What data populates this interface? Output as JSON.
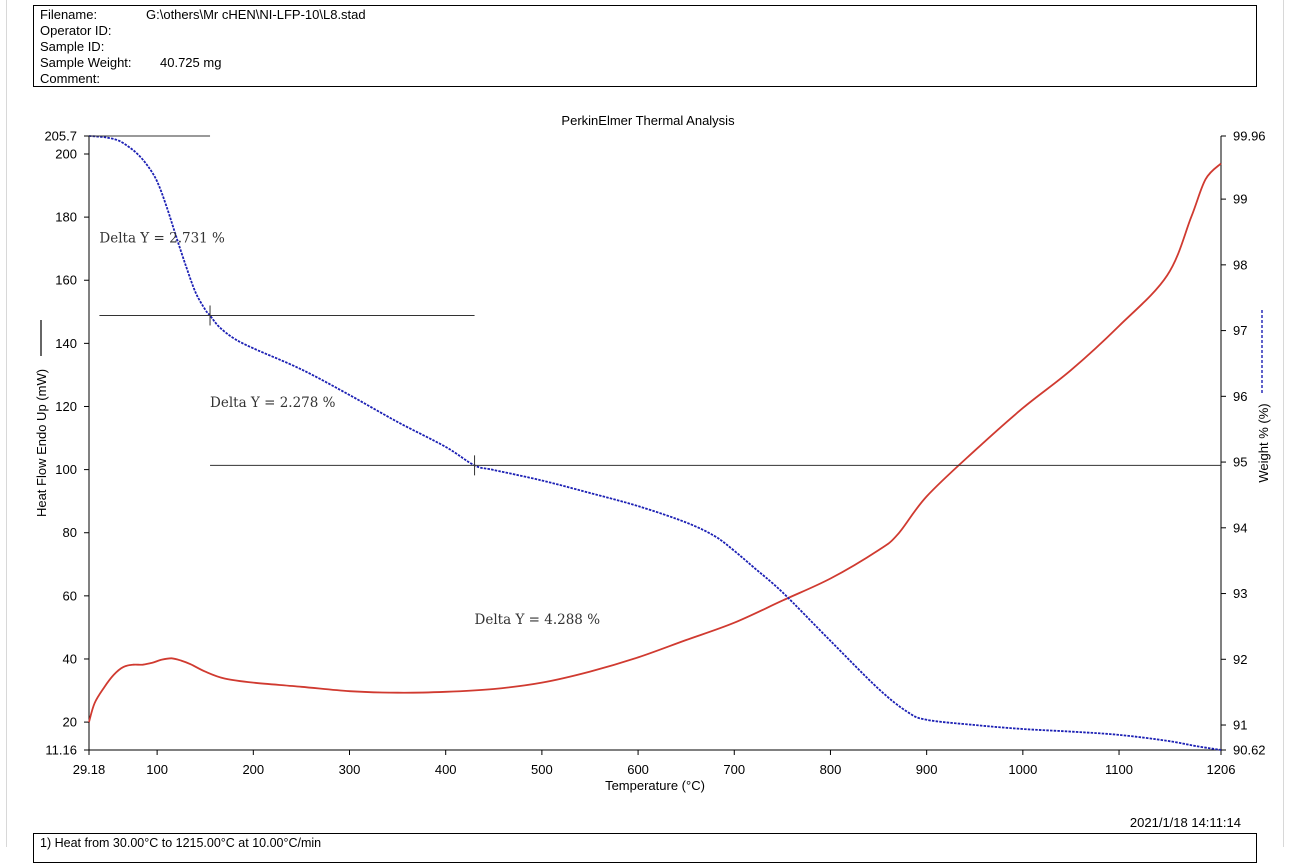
{
  "header": {
    "filename_label": "Filename:",
    "filename": "G:\\others\\Mr cHEN\\NI-LFP-10\\L8.stad",
    "operator_label": "Operator ID:",
    "sample_id_label": "Sample ID:",
    "sample_weight_label": "Sample Weight:",
    "sample_weight": "40.725 mg",
    "comment_label": "Comment:"
  },
  "timestamp": "2021/1/18 14:11:14",
  "footer": {
    "method_step": "1)  Heat from 30.00°C to 1215.00°C at 10.00°C/min"
  },
  "chart_data": {
    "type": "line",
    "title": "PerkinElmer Thermal Analysis",
    "xlabel": "Temperature (°C)",
    "ylabel_left": "Heat Flow Endo Up (mW)",
    "ylabel_right": "Weight % (%)",
    "xlim": [
      29.18,
      1206
    ],
    "ylim_left": [
      11.16,
      205.7
    ],
    "ylim_right": [
      90.62,
      99.96
    ],
    "x_ticks": [
      "29.18",
      "100",
      "200",
      "300",
      "400",
      "500",
      "600",
      "700",
      "800",
      "900",
      "1000",
      "1100",
      "1206"
    ],
    "y_left_ticks": [
      "205.7",
      "200",
      "180",
      "160",
      "140",
      "120",
      "100",
      "80",
      "60",
      "40",
      "20",
      "11.16"
    ],
    "y_right_ticks": [
      "99.96",
      "99",
      "98",
      "97",
      "96",
      "95",
      "94",
      "93",
      "92",
      "91",
      "90.62"
    ],
    "series": [
      {
        "axis": "left",
        "color": "#d03a30",
        "style": "solid",
        "x": [
          29.18,
          35,
          45,
          55,
          65,
          75,
          85,
          95,
          105,
          115,
          125,
          135,
          150,
          170,
          200,
          250,
          300,
          350,
          400,
          450,
          500,
          550,
          600,
          650,
          700,
          750,
          800,
          850,
          870,
          900,
          950,
          1000,
          1050,
          1100,
          1150,
          1175,
          1190,
          1206
        ],
        "y": [
          20,
          26,
          31,
          35,
          37.5,
          38.2,
          38.2,
          38.8,
          39.8,
          40.2,
          39.5,
          38.3,
          36,
          33.8,
          32.5,
          31.2,
          29.8,
          29.3,
          29.6,
          30.5,
          32.5,
          36,
          40.5,
          46,
          51.5,
          58.5,
          65.5,
          74.5,
          79.5,
          91.5,
          106,
          119.5,
          131.5,
          145.5,
          161.5,
          180,
          192,
          197
        ]
      },
      {
        "axis": "right",
        "color": "#1c20b4",
        "style": "dashed",
        "x": [
          29.18,
          40,
          50,
          60,
          70,
          80,
          90,
          100,
          110,
          120,
          130,
          140,
          150,
          155,
          165,
          180,
          200,
          250,
          300,
          350,
          400,
          430,
          450,
          500,
          550,
          600,
          650,
          680,
          700,
          720,
          750,
          800,
          850,
          880,
          900,
          950,
          1000,
          1050,
          1100,
          1150,
          1180,
          1206
        ],
        "y": [
          99.96,
          99.95,
          99.93,
          99.89,
          99.8,
          99.68,
          99.51,
          99.27,
          98.88,
          98.42,
          97.98,
          97.58,
          97.32,
          97.23,
          97.05,
          96.88,
          96.73,
          96.41,
          96.02,
          95.61,
          95.23,
          94.95,
          94.88,
          94.72,
          94.53,
          94.33,
          94.08,
          93.87,
          93.65,
          93.4,
          93.02,
          92.28,
          91.55,
          91.2,
          91.08,
          91.0,
          90.94,
          90.9,
          90.85,
          90.76,
          90.68,
          90.62
        ]
      }
    ],
    "annotations": [
      {
        "text": "Delta Y = 2.731 %",
        "x": 40,
        "y_right": 98.4
      },
      {
        "text": "Delta Y = 2.278 %",
        "x": 155,
        "y_right": 95.9
      },
      {
        "text": "Delta Y = 4.288 %",
        "x": 430,
        "y_right": 92.6
      }
    ],
    "step_lines": [
      {
        "x_from": 29.18,
        "x_to": 155,
        "y_right": 99.96
      },
      {
        "x_from": 40,
        "x_to": 430,
        "y_right": 97.23
      },
      {
        "x_from": 155,
        "x_to": 1206,
        "y_right": 94.95
      }
    ],
    "markers": [
      {
        "x": 155,
        "y_right": 97.23
      },
      {
        "x": 430,
        "y_right": 94.95
      }
    ]
  }
}
